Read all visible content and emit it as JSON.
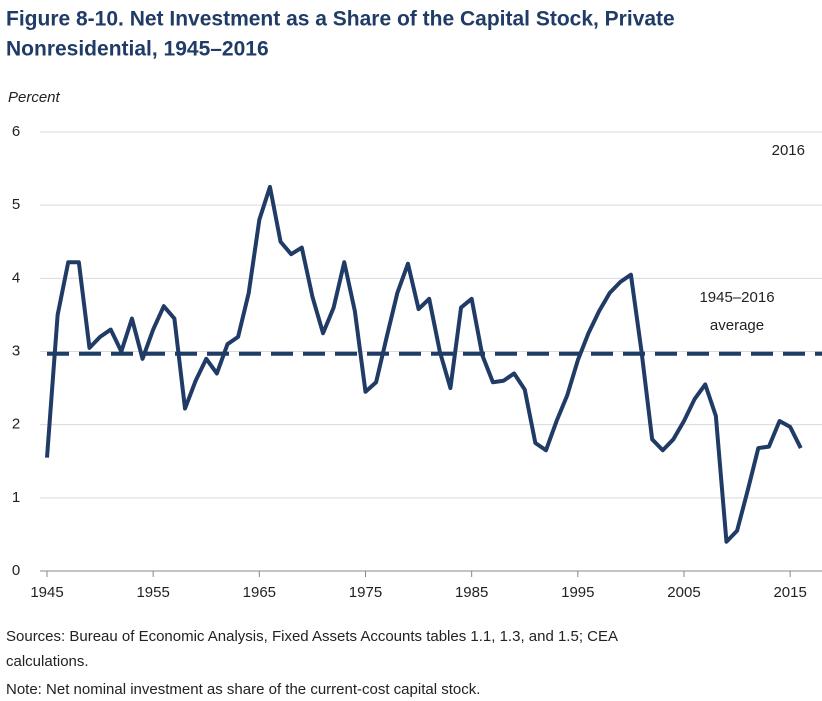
{
  "chart_data": {
    "type": "line",
    "title": [
      "Figure 8-10. Net Investment as a Share of the Capital Stock, Private",
      "Nonresidential, 1945–2016"
    ],
    "y_axis_label": "Percent",
    "x": [
      1945,
      1946,
      1947,
      1948,
      1949,
      1950,
      1951,
      1952,
      1953,
      1954,
      1955,
      1956,
      1957,
      1958,
      1959,
      1960,
      1961,
      1962,
      1963,
      1964,
      1965,
      1966,
      1967,
      1968,
      1969,
      1970,
      1971,
      1972,
      1973,
      1974,
      1975,
      1976,
      1977,
      1978,
      1979,
      1980,
      1981,
      1982,
      1983,
      1984,
      1985,
      1986,
      1987,
      1988,
      1989,
      1990,
      1991,
      1992,
      1993,
      1994,
      1995,
      1996,
      1997,
      1998,
      1999,
      2000,
      2001,
      2002,
      2003,
      2004,
      2005,
      2006,
      2007,
      2008,
      2009,
      2010,
      2011,
      2012,
      2013,
      2014,
      2015,
      2016
    ],
    "values": [
      1.55,
      3.5,
      4.22,
      4.22,
      3.05,
      3.2,
      3.3,
      3.0,
      3.45,
      2.9,
      3.3,
      3.62,
      3.45,
      2.22,
      2.6,
      2.9,
      2.7,
      3.1,
      3.2,
      3.8,
      4.8,
      5.25,
      4.5,
      4.33,
      4.42,
      3.75,
      3.25,
      3.6,
      4.22,
      3.55,
      2.45,
      2.58,
      3.2,
      3.8,
      4.2,
      3.58,
      3.72,
      3.0,
      2.5,
      3.6,
      3.72,
      2.95,
      2.58,
      2.6,
      2.7,
      2.48,
      1.75,
      1.65,
      2.05,
      2.4,
      2.88,
      3.25,
      3.55,
      3.8,
      3.95,
      4.05,
      3.0,
      1.8,
      1.65,
      1.8,
      2.05,
      2.35,
      2.55,
      2.12,
      0.4,
      0.55,
      1.1,
      1.68,
      1.7,
      2.05,
      1.97,
      1.68
    ],
    "color": "#1f3b66",
    "average": {
      "value": 2.97,
      "label": [
        "1945–2016",
        "average"
      ]
    },
    "annotation": "2016",
    "xlim": [
      1945,
      2018
    ],
    "xticks": [
      1945,
      1955,
      1965,
      1975,
      1985,
      1995,
      2005,
      2015
    ],
    "ylim": [
      0,
      6
    ],
    "yticks": [
      0,
      1,
      2,
      3,
      4,
      5,
      6
    ],
    "grid": true,
    "sources": [
      "Sources: Bureau of Economic Analysis, Fixed Assets Accounts tables 1.1, 1.3, and 1.5; CEA",
      "calculations."
    ],
    "note": "Note: Net nominal investment as share of the current-cost capital stock."
  }
}
